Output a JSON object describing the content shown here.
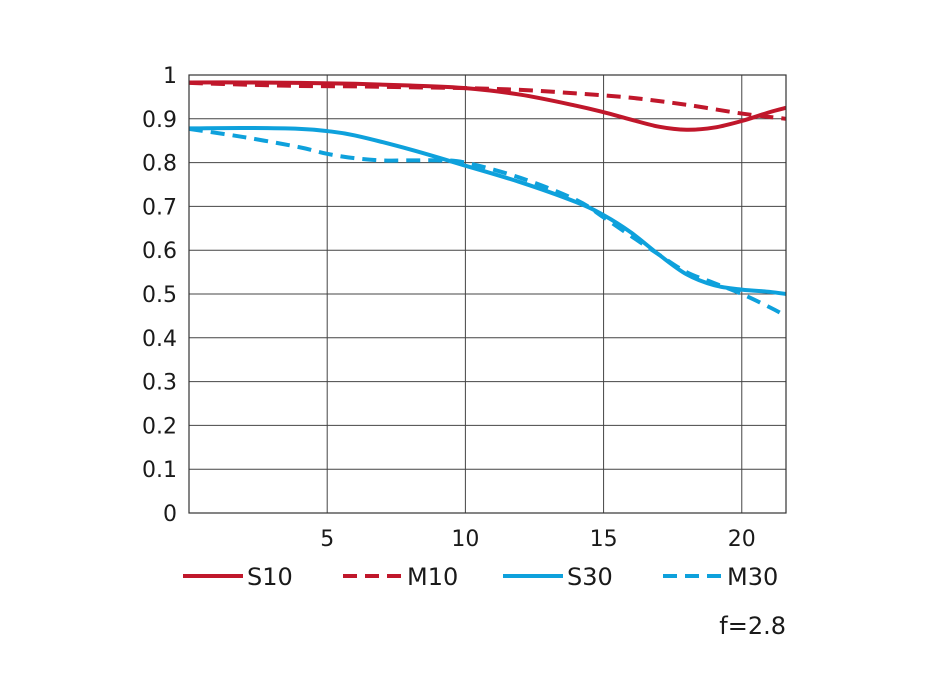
{
  "chart_data": {
    "type": "line",
    "title": "",
    "xlabel": "",
    "ylabel": "",
    "xlim": [
      0,
      21.6
    ],
    "ylim": [
      0,
      1
    ],
    "x_ticks": [
      5,
      10,
      15,
      20
    ],
    "y_ticks": [
      0,
      0.1,
      0.2,
      0.3,
      0.4,
      0.5,
      0.6,
      0.7,
      0.8,
      0.9,
      1
    ],
    "x_tick_labels": [
      "5",
      "10",
      "15",
      "20"
    ],
    "y_tick_labels": [
      "0",
      "0.1",
      "0.2",
      "0.3",
      "0.4",
      "0.5",
      "0.6",
      "0.7",
      "0.8",
      "0.9",
      "1"
    ],
    "grid": true,
    "legend_position": "bottom",
    "series": [
      {
        "name": "S10",
        "color": "#c0172b",
        "style": "solid",
        "x": [
          0,
          2,
          4,
          6,
          8,
          10,
          12,
          14,
          15,
          16,
          17,
          18,
          19,
          20,
          21,
          21.6
        ],
        "y": [
          0.983,
          0.983,
          0.982,
          0.98,
          0.976,
          0.97,
          0.955,
          0.93,
          0.915,
          0.898,
          0.882,
          0.875,
          0.88,
          0.895,
          0.915,
          0.925
        ]
      },
      {
        "name": "M10",
        "color": "#c0172b",
        "style": "dashed",
        "x": [
          0,
          2,
          4,
          6,
          8,
          10,
          12,
          14,
          16,
          18,
          20,
          21.6
        ],
        "y": [
          0.982,
          0.978,
          0.975,
          0.974,
          0.972,
          0.97,
          0.966,
          0.958,
          0.948,
          0.932,
          0.912,
          0.9
        ]
      },
      {
        "name": "S30",
        "color": "#0ea1dc",
        "style": "solid",
        "x": [
          0,
          2,
          4,
          5,
          6,
          8,
          10,
          12,
          14,
          15,
          16,
          17,
          18,
          19,
          20,
          21,
          21.6
        ],
        "y": [
          0.878,
          0.879,
          0.877,
          0.872,
          0.862,
          0.83,
          0.793,
          0.755,
          0.71,
          0.68,
          0.64,
          0.59,
          0.545,
          0.52,
          0.51,
          0.505,
          0.5
        ]
      },
      {
        "name": "M30",
        "color": "#0ea1dc",
        "style": "dashed",
        "x": [
          0,
          2,
          4,
          5,
          6,
          7,
          8,
          9,
          10,
          12,
          14,
          15,
          16,
          17,
          18,
          19,
          20,
          21,
          21.6
        ],
        "y": [
          0.877,
          0.858,
          0.835,
          0.82,
          0.81,
          0.805,
          0.805,
          0.805,
          0.8,
          0.765,
          0.715,
          0.675,
          0.632,
          0.59,
          0.55,
          0.525,
          0.5,
          0.47,
          0.45
        ]
      }
    ]
  },
  "note": "f=2.8"
}
